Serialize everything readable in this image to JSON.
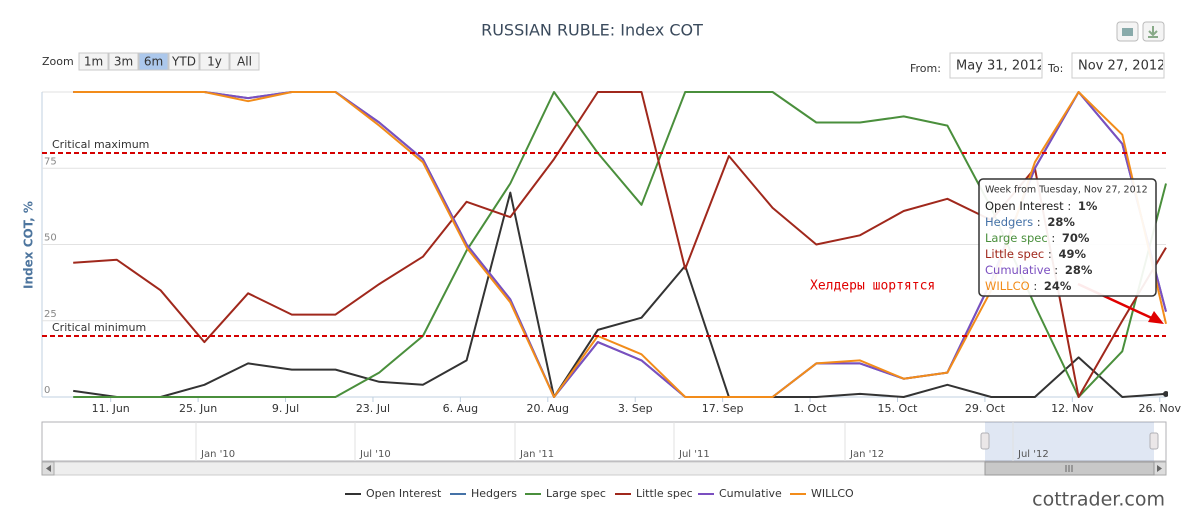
{
  "chart_data": {
    "type": "line",
    "title": "RUSSIAN RUBLE: Index COT",
    "y_axis_label": "Index COT, %",
    "x": [
      "2012-06-05",
      "2012-06-12",
      "2012-06-19",
      "2012-06-26",
      "2012-07-03",
      "2012-07-10",
      "2012-07-17",
      "2012-07-24",
      "2012-07-31",
      "2012-08-07",
      "2012-08-14",
      "2012-08-21",
      "2012-08-28",
      "2012-09-04",
      "2012-09-11",
      "2012-09-18",
      "2012-09-25",
      "2012-10-02",
      "2012-10-09",
      "2012-10-16",
      "2012-10-23",
      "2012-10-30",
      "2012-11-06",
      "2012-11-13",
      "2012-11-20",
      "2012-11-27"
    ],
    "xlim": [
      "2012-05-31",
      "2012-11-27"
    ],
    "xticks": [
      {
        "value": "2012-06-11",
        "label": "11. Jun"
      },
      {
        "value": "2012-06-25",
        "label": "25. Jun"
      },
      {
        "value": "2012-07-09",
        "label": "9. Jul"
      },
      {
        "value": "2012-07-23",
        "label": "23. Jul"
      },
      {
        "value": "2012-08-06",
        "label": "6. Aug"
      },
      {
        "value": "2012-08-20",
        "label": "20. Aug"
      },
      {
        "value": "2012-09-03",
        "label": "3. Sep"
      },
      {
        "value": "2012-09-17",
        "label": "17. Sep"
      },
      {
        "value": "2012-10-01",
        "label": "1. Oct"
      },
      {
        "value": "2012-10-15",
        "label": "15. Oct"
      },
      {
        "value": "2012-10-29",
        "label": "29. Oct"
      },
      {
        "value": "2012-11-12",
        "label": "12. Nov"
      },
      {
        "value": "2012-11-26",
        "label": "26. Nov"
      }
    ],
    "ylim": [
      0,
      100
    ],
    "yticks": [
      0,
      25,
      50,
      75
    ],
    "grid": true,
    "series": [
      {
        "name": "Open Interest",
        "color": "#333333",
        "values": [
          2,
          0,
          0,
          4,
          11,
          9,
          9,
          5,
          4,
          12,
          67,
          0,
          22,
          26,
          43,
          0,
          0,
          0,
          1,
          0,
          4,
          0,
          0,
          13,
          0,
          1
        ],
        "value_labels": [
          null,
          null,
          null,
          null,
          null,
          null,
          null,
          null,
          null,
          null,
          null,
          null,
          null,
          null,
          null,
          null,
          null,
          null,
          null,
          null,
          null,
          null,
          null,
          null,
          null,
          "1%"
        ]
      },
      {
        "name": "Hedgers",
        "color": "#4572a7",
        "values": [
          100,
          100,
          100,
          100,
          98,
          100,
          100,
          90,
          78,
          50,
          32,
          0,
          18,
          12,
          0,
          0,
          0,
          11,
          11,
          6,
          8,
          38,
          75,
          100,
          83,
          28
        ],
        "value_labels": [
          null,
          null,
          null,
          null,
          null,
          null,
          null,
          null,
          null,
          null,
          null,
          null,
          null,
          null,
          null,
          null,
          null,
          null,
          null,
          null,
          null,
          null,
          null,
          null,
          null,
          "28%"
        ]
      },
      {
        "name": "Large spec",
        "color": "#4a8f3c",
        "values": [
          0,
          0,
          0,
          0,
          0,
          0,
          0,
          8,
          20,
          48,
          70,
          100,
          80,
          63,
          100,
          100,
          100,
          90,
          90,
          92,
          89,
          62,
          30,
          0,
          15,
          70
        ],
        "value_labels": [
          null,
          null,
          null,
          null,
          null,
          null,
          null,
          null,
          null,
          null,
          null,
          null,
          null,
          null,
          null,
          null,
          null,
          null,
          null,
          null,
          null,
          null,
          null,
          null,
          null,
          "70%"
        ]
      },
      {
        "name": "Little spec",
        "color": "#a0281c",
        "values": [
          44,
          45,
          35,
          18,
          34,
          27,
          27,
          37,
          46,
          64,
          59,
          78,
          100,
          100,
          42,
          79,
          62,
          50,
          53,
          61,
          65,
          58,
          75,
          0,
          25,
          49
        ],
        "value_labels": [
          null,
          null,
          null,
          null,
          null,
          null,
          null,
          null,
          null,
          null,
          null,
          null,
          null,
          null,
          null,
          null,
          null,
          null,
          null,
          null,
          null,
          null,
          null,
          null,
          null,
          "49%"
        ]
      },
      {
        "name": "Cumulative",
        "color": "#7b4fc0",
        "values": [
          100,
          100,
          100,
          100,
          98,
          100,
          100,
          90,
          78,
          50,
          32,
          0,
          18,
          12,
          0,
          0,
          0,
          11,
          11,
          6,
          8,
          38,
          75,
          100,
          83,
          28
        ],
        "value_labels": [
          null,
          null,
          null,
          null,
          null,
          null,
          null,
          null,
          null,
          null,
          null,
          null,
          null,
          null,
          null,
          null,
          null,
          null,
          null,
          null,
          null,
          null,
          null,
          null,
          null,
          "28%"
        ]
      },
      {
        "name": "WILLCO",
        "color": "#f28c1a",
        "values": [
          100,
          100,
          100,
          100,
          97,
          100,
          100,
          89,
          77,
          49,
          31,
          0,
          20,
          14,
          0,
          0,
          0,
          11,
          12,
          6,
          8,
          35,
          77,
          100,
          86,
          24
        ],
        "value_labels": [
          null,
          null,
          null,
          null,
          null,
          null,
          null,
          null,
          null,
          null,
          null,
          null,
          null,
          null,
          null,
          null,
          null,
          null,
          null,
          null,
          null,
          null,
          null,
          null,
          null,
          "24%"
        ]
      }
    ],
    "tooltip_title": "Week from Tuesday, Nov 27, 2012",
    "annotations": [
      {
        "text": "Critical maximum",
        "y": 80
      },
      {
        "text": "Critical minimum",
        "y": 20
      },
      {
        "text": "Хелдеры шортятся"
      }
    ]
  },
  "ui": {
    "zoom_label": "Zoom",
    "zoom_buttons": [
      "1m",
      "3m",
      "6m",
      "YTD",
      "1y",
      "All"
    ],
    "zoom_selected": 2,
    "from_label": "From:",
    "from_value": "May 31, 2012",
    "to_label": "To:",
    "to_value": "Nov 27, 2012",
    "navigator_labels": [
      "Jan '10",
      "Jul '10",
      "Jan '11",
      "Jul '11",
      "Jan '12",
      "Jul '12"
    ],
    "watermark": "cottrader.com"
  }
}
